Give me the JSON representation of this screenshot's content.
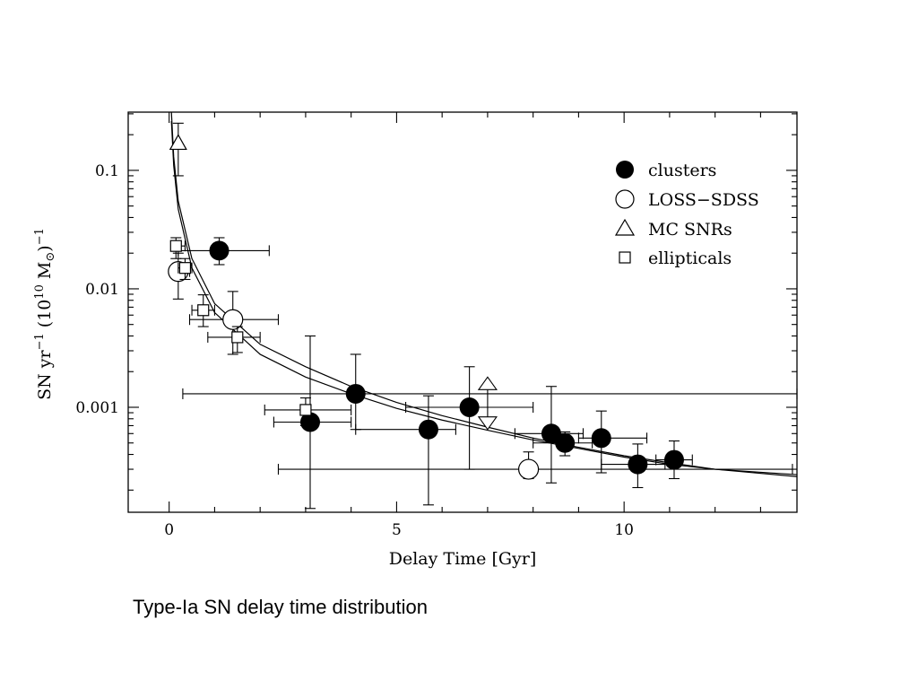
{
  "caption": "Type-Ia SN delay time distribution",
  "chart_data": {
    "type": "scatter",
    "xlabel": "Delay Time [Gyr]",
    "ylabel_parts": {
      "a": "SN yr",
      "a_sup": "−1",
      "b": "(10",
      "b_sup": "10",
      "c": "M",
      "c_sub": "⊙",
      "d": ")",
      "d_sup": "−1"
    },
    "xlim": [
      -0.9,
      13.8
    ],
    "ylim": [
      0.00013,
      0.31
    ],
    "yscale": "log",
    "x_ticks": [
      {
        "value": 0,
        "label": "0"
      },
      {
        "value": 5,
        "label": "5"
      },
      {
        "value": 10,
        "label": "10"
      }
    ],
    "y_ticks": [
      {
        "value": 0.1,
        "label": "0.1"
      },
      {
        "value": 0.01,
        "label": "0.01"
      },
      {
        "value": 0.001,
        "label": "0.001"
      }
    ],
    "legend": {
      "placement": "top-right",
      "entries": [
        {
          "marker": "filled-circle",
          "label": "clusters"
        },
        {
          "marker": "open-circle",
          "label": "LOSS−SDSS"
        },
        {
          "marker": "open-triangle",
          "label": "MC SNRs"
        },
        {
          "marker": "open-square",
          "label": "ellipticals"
        }
      ]
    },
    "series": [
      {
        "marker": "filled-circle",
        "points": [
          {
            "x": 1.1,
            "y": 0.021,
            "xerr": [
              0.2,
              2.2
            ],
            "yerr": [
              0.016,
              0.027
            ]
          },
          {
            "x": 3.1,
            "y": 0.00075,
            "xerr": [
              2.3,
              4.0
            ],
            "yerr": [
              0.00014,
              0.004
            ]
          },
          {
            "x": 4.1,
            "y": 0.0013,
            "xerr": [
              0.3,
              13.8
            ],
            "yerr": [
              0.00065,
              0.0028
            ]
          },
          {
            "x": 5.7,
            "y": 0.00065,
            "xerr": [
              4.1,
              6.3
            ],
            "yerr": [
              0.00015,
              0.00125
            ]
          },
          {
            "x": 6.6,
            "y": 0.001,
            "xerr": [
              5.2,
              8.0
            ],
            "yerr": [
              0.0003,
              0.0022
            ]
          },
          {
            "x": 8.4,
            "y": 0.0006,
            "xerr": [
              7.6,
              9.1
            ],
            "yerr": [
              0.00023,
              0.0015
            ]
          },
          {
            "x": 8.7,
            "y": 0.0005,
            "xerr": [
              8.0,
              9.3
            ],
            "yerr": [
              0.00039,
              0.00062
            ]
          },
          {
            "x": 9.5,
            "y": 0.00055,
            "xerr": [
              9.0,
              10.5
            ],
            "yerr": [
              0.00028,
              0.00093
            ]
          },
          {
            "x": 10.3,
            "y": 0.00033,
            "xerr": [
              9.5,
              10.9
            ],
            "yerr": [
              0.00021,
              0.00049
            ]
          },
          {
            "x": 11.1,
            "y": 0.00036,
            "xerr": [
              10.7,
              11.5
            ],
            "yerr": [
              0.00025,
              0.00052
            ]
          }
        ]
      },
      {
        "marker": "open-circle",
        "points": [
          {
            "x": 0.2,
            "y": 0.014,
            "xerr": [
              0.1,
              0.45
            ],
            "yerr": [
              0.0082,
              0.02
            ]
          },
          {
            "x": 1.4,
            "y": 0.0055,
            "xerr": [
              0.45,
              2.4
            ],
            "yerr": [
              0.0028,
              0.0095
            ]
          },
          {
            "x": 7.9,
            "y": 0.0003,
            "xerr": [
              2.4,
              13.7
            ],
            "yerr": [
              0.00025,
              0.00042
            ]
          }
        ]
      },
      {
        "marker": "open-triangle",
        "points": [
          {
            "x": 0.2,
            "y": 0.17,
            "xerr": null,
            "yerr": [
              0.09,
              0.25
            ]
          }
        ]
      },
      {
        "marker": "open-square",
        "points": [
          {
            "x": 0.15,
            "y": 0.023,
            "xerr": [
              0.05,
              0.35
            ],
            "yerr": [
              0.018,
              0.027
            ]
          },
          {
            "x": 0.35,
            "y": 0.015,
            "xerr": [
              0.2,
              0.5
            ],
            "yerr": [
              0.012,
              0.018
            ]
          },
          {
            "x": 0.75,
            "y": 0.0066,
            "xerr": [
              0.5,
              1.0
            ],
            "yerr": [
              0.0048,
              0.0089
            ]
          },
          {
            "x": 1.5,
            "y": 0.0039,
            "xerr": [
              0.85,
              2.0
            ],
            "yerr": [
              0.0029,
              0.0048
            ]
          },
          {
            "x": 3.0,
            "y": 0.00095,
            "xerr": [
              2.1,
              4.0
            ],
            "yerr": [
              0.0007,
              0.0012
            ]
          }
        ]
      }
    ],
    "arrows": [
      {
        "x": 7.0,
        "y_low": 0.00065,
        "y_high": 0.0018
      }
    ],
    "curves": [
      {
        "type": "power-law",
        "points": [
          [
            0.05,
            0.31
          ],
          [
            0.1,
            0.13
          ],
          [
            0.2,
            0.055
          ],
          [
            0.5,
            0.018
          ],
          [
            1,
            0.0075
          ],
          [
            2,
            0.0034
          ],
          [
            3,
            0.0022
          ],
          [
            4,
            0.0015
          ],
          [
            5,
            0.0011
          ],
          [
            6,
            0.00085
          ],
          [
            7,
            0.00068
          ],
          [
            8,
            0.00055
          ],
          [
            9,
            0.00046
          ],
          [
            10,
            0.00039
          ],
          [
            11,
            0.00034
          ],
          [
            12,
            0.0003
          ],
          [
            13.8,
            0.00026
          ]
        ]
      },
      {
        "type": "power-law",
        "points": [
          [
            0.05,
            0.26
          ],
          [
            0.1,
            0.11
          ],
          [
            0.2,
            0.047
          ],
          [
            0.5,
            0.015
          ],
          [
            1,
            0.0063
          ],
          [
            2,
            0.0028
          ],
          [
            3,
            0.0018
          ],
          [
            4,
            0.0013
          ],
          [
            5,
            0.00098
          ],
          [
            6,
            0.00078
          ],
          [
            7,
            0.00064
          ],
          [
            8,
            0.00053
          ],
          [
            9,
            0.00045
          ],
          [
            10,
            0.00038
          ],
          [
            11,
            0.00033
          ],
          [
            12,
            0.0003
          ],
          [
            13.8,
            0.00027
          ]
        ]
      }
    ]
  }
}
